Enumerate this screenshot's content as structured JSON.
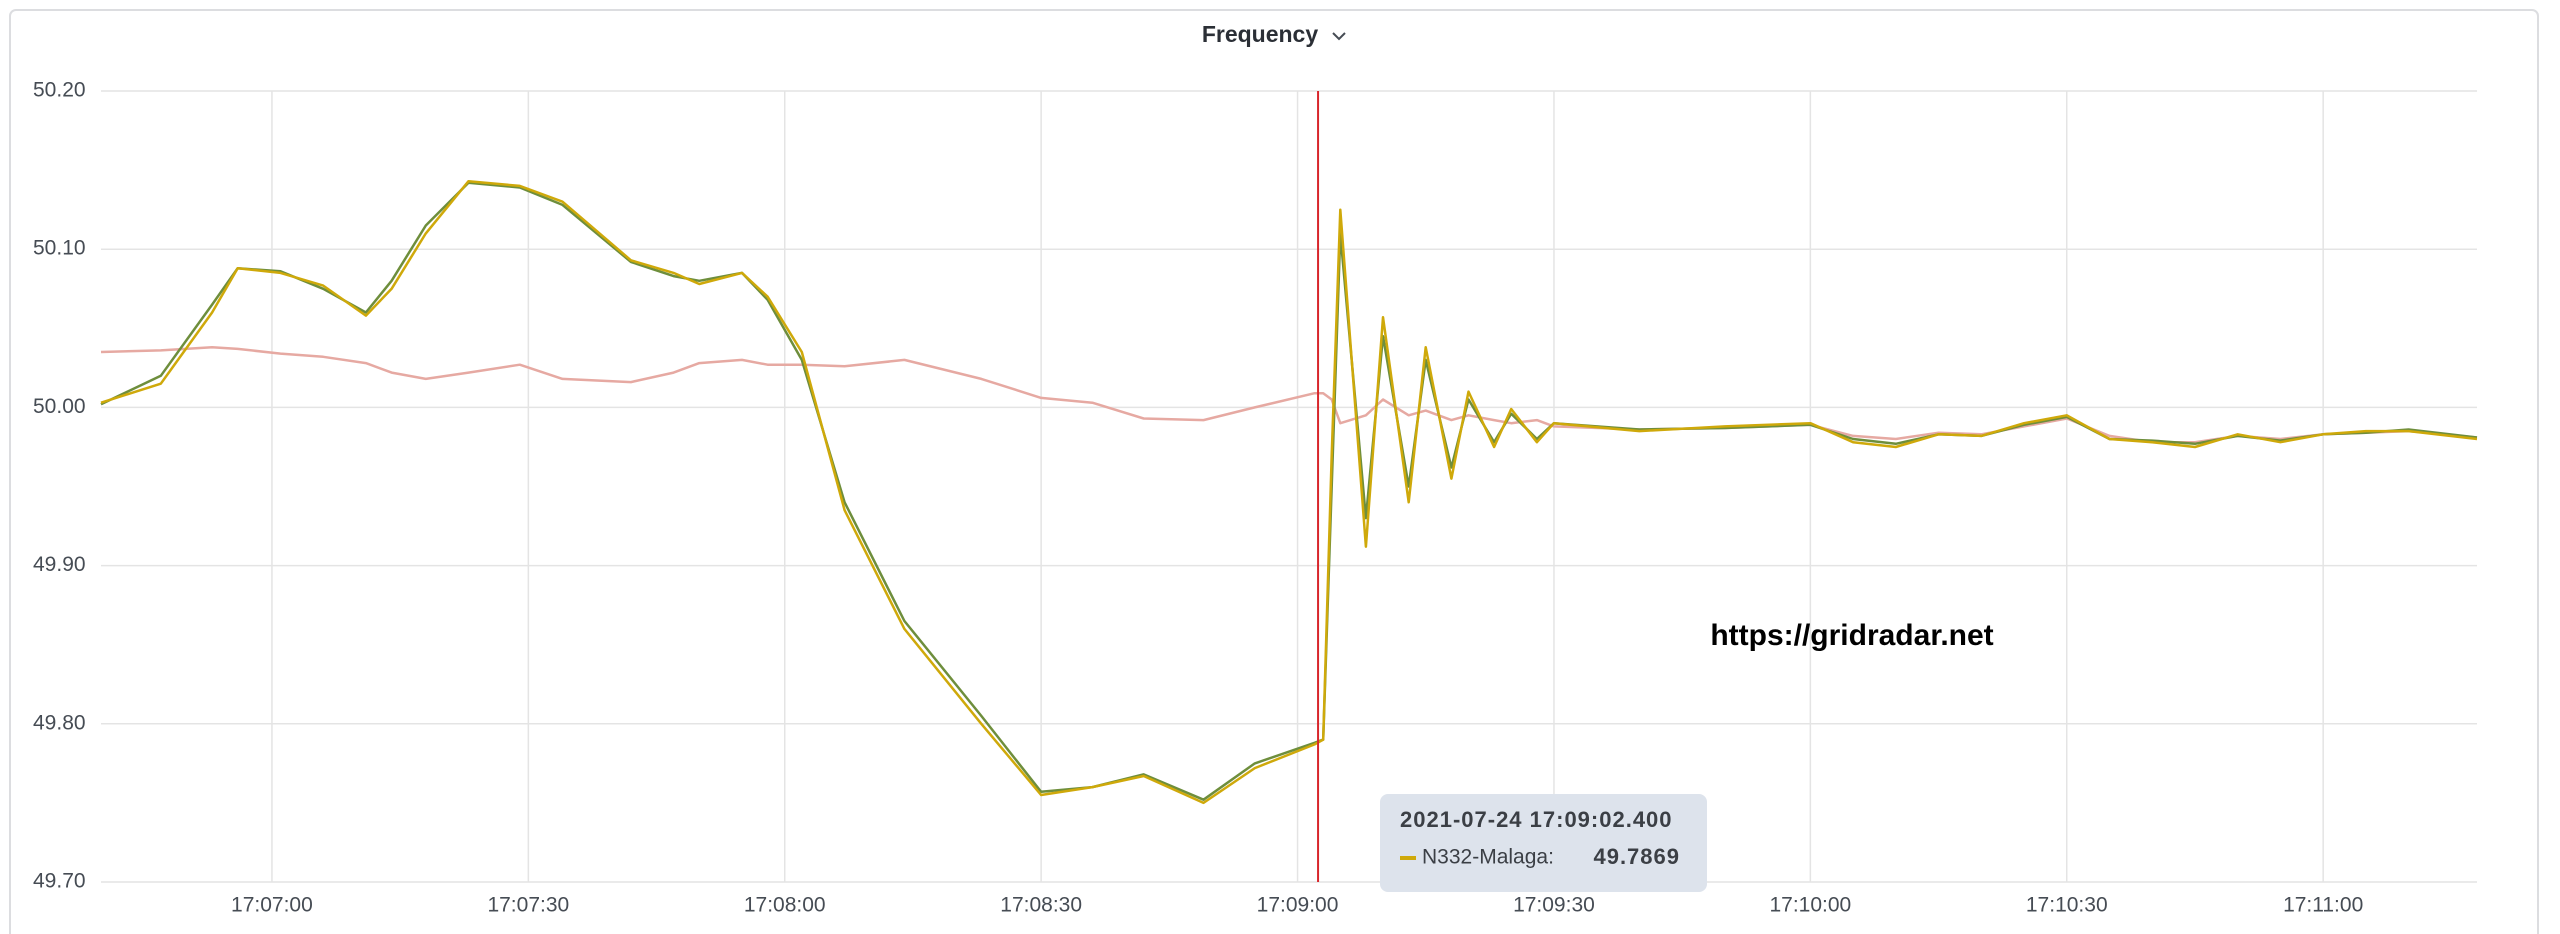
{
  "chart_data": {
    "type": "line",
    "title": "Frequency",
    "annotation": "https://gridradar.net",
    "x": [
      "17:06:40",
      "17:06:47",
      "17:06:53",
      "17:06:56",
      "17:07:01",
      "17:07:06",
      "17:07:11",
      "17:07:14",
      "17:07:18",
      "17:07:23",
      "17:07:29",
      "17:07:34",
      "17:07:42",
      "17:07:47",
      "17:07:50",
      "17:07:55",
      "17:07:58",
      "17:08:02",
      "17:08:07",
      "17:08:14",
      "17:08:23",
      "17:08:30",
      "17:08:36",
      "17:08:42",
      "17:08:49",
      "17:08:55",
      "17:09:02",
      "17:09:03",
      "17:09:04",
      "17:09:05",
      "17:09:08",
      "17:09:10",
      "17:09:13",
      "17:09:15",
      "17:09:18",
      "17:09:20",
      "17:09:23",
      "17:09:25",
      "17:09:28",
      "17:09:30",
      "17:09:40",
      "17:09:50",
      "17:10:00",
      "17:10:05",
      "17:10:10",
      "17:10:15",
      "17:10:20",
      "17:10:25",
      "17:10:30",
      "17:10:35",
      "17:10:40",
      "17:10:45",
      "17:10:50",
      "17:10:55",
      "17:11:00",
      "17:11:05",
      "17:11:10",
      "17:11:18"
    ],
    "series": [
      {
        "color": "#e6a9a2",
        "values": [
          50.035,
          50.036,
          50.038,
          50.037,
          50.034,
          50.032,
          50.028,
          50.022,
          50.018,
          50.022,
          50.027,
          50.018,
          50.016,
          50.022,
          50.028,
          50.03,
          50.027,
          50.027,
          50.026,
          50.03,
          50.018,
          50.006,
          50.003,
          49.993,
          49.992,
          50.0,
          50.009,
          50.009,
          50.005,
          49.99,
          49.995,
          50.005,
          49.995,
          49.998,
          49.992,
          49.995,
          49.992,
          49.99,
          49.992,
          49.988,
          49.986,
          49.987,
          49.989,
          49.982,
          49.98,
          49.984,
          49.983,
          49.988,
          49.993,
          49.982,
          49.978,
          49.978,
          49.982,
          49.98,
          49.983,
          49.984,
          49.985,
          49.981
        ]
      },
      {
        "color": "#6e8e3c",
        "values": [
          50.002,
          50.02,
          50.065,
          50.088,
          50.086,
          50.075,
          50.06,
          50.08,
          50.115,
          50.142,
          50.139,
          50.128,
          50.092,
          50.083,
          50.08,
          50.085,
          50.068,
          50.03,
          49.94,
          49.865,
          49.805,
          49.757,
          49.76,
          49.768,
          49.752,
          49.775,
          49.788,
          49.79,
          49.95,
          50.11,
          49.93,
          50.045,
          49.95,
          50.03,
          49.962,
          50.005,
          49.978,
          49.996,
          49.98,
          49.99,
          49.986,
          49.987,
          49.989,
          49.98,
          49.977,
          49.983,
          49.982,
          49.989,
          49.994,
          49.98,
          49.979,
          49.977,
          49.982,
          49.979,
          49.983,
          49.984,
          49.986,
          49.981
        ]
      },
      {
        "name": "N332-Malaga",
        "color": "#cfa90a",
        "values": [
          50.003,
          50.015,
          50.06,
          50.088,
          50.085,
          50.077,
          50.058,
          50.075,
          50.11,
          50.143,
          50.14,
          50.13,
          50.093,
          50.085,
          50.078,
          50.085,
          50.07,
          50.035,
          49.935,
          49.86,
          49.8,
          49.755,
          49.76,
          49.767,
          49.75,
          49.772,
          49.787,
          49.79,
          49.97,
          50.125,
          49.912,
          50.057,
          49.94,
          50.038,
          49.955,
          50.01,
          49.975,
          49.999,
          49.978,
          49.99,
          49.985,
          49.988,
          49.99,
          49.978,
          49.975,
          49.983,
          49.982,
          49.99,
          49.995,
          49.98,
          49.978,
          49.975,
          49.983,
          49.978,
          49.983,
          49.985,
          49.985,
          49.98
        ]
      }
    ],
    "xlim": [
      "17:06:40",
      "17:11:18"
    ],
    "xticks": [
      "17:07:00",
      "17:07:30",
      "17:08:00",
      "17:08:30",
      "17:09:00",
      "17:09:30",
      "17:10:00",
      "17:10:30",
      "17:11:00"
    ],
    "ylim": [
      49.7,
      50.2
    ],
    "yticks": [
      {
        "value": 49.7,
        "label": "49.70"
      },
      {
        "value": 49.8,
        "label": "49.80"
      },
      {
        "value": 49.9,
        "label": "49.90"
      },
      {
        "value": 50.0,
        "label": "50.00"
      },
      {
        "value": 50.1,
        "label": "50.10"
      },
      {
        "value": 50.2,
        "label": "50.20"
      }
    ],
    "grid": true,
    "cursor_color": "#d8262b",
    "tooltip": {
      "time": "2021-07-24 17:09:02.400",
      "label": "N332-Malaga:",
      "value": 49.7869,
      "series": 2
    }
  }
}
